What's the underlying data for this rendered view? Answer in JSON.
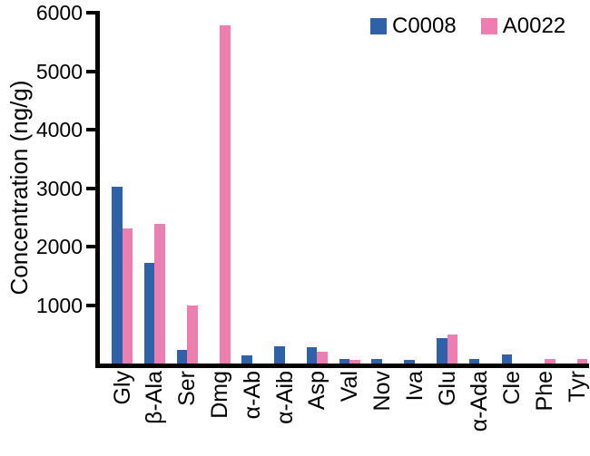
{
  "chart_data": {
    "type": "bar",
    "title": "",
    "xlabel": "",
    "ylabel": "Concentration (ng/g)",
    "categories": [
      "Gly",
      "β-Ala",
      "Ser",
      "Dmg",
      "α-Ab",
      "α-Aib",
      "Asp",
      "Val",
      "Nov",
      "Iva",
      "Glu",
      "α-Ada",
      "Cle",
      "Phe",
      "Tyr"
    ],
    "series": [
      {
        "name": "C0008",
        "color": "#2d62aa",
        "values": [
          3020,
          1720,
          240,
          0,
          140,
          290,
          280,
          70,
          80,
          60,
          440,
          75,
          155,
          0,
          0
        ]
      },
      {
        "name": "A0022",
        "color": "#ee7eb0",
        "values": [
          2310,
          2390,
          1000,
          5780,
          0,
          0,
          200,
          55,
          0,
          0,
          500,
          0,
          0,
          85,
          70
        ]
      }
    ],
    "ylim": [
      0,
      6000
    ],
    "yticks": [
      1000,
      2000,
      3000,
      4000,
      5000,
      6000
    ],
    "grid": false,
    "legend_position": "top-right",
    "axis_color": "#000000"
  }
}
